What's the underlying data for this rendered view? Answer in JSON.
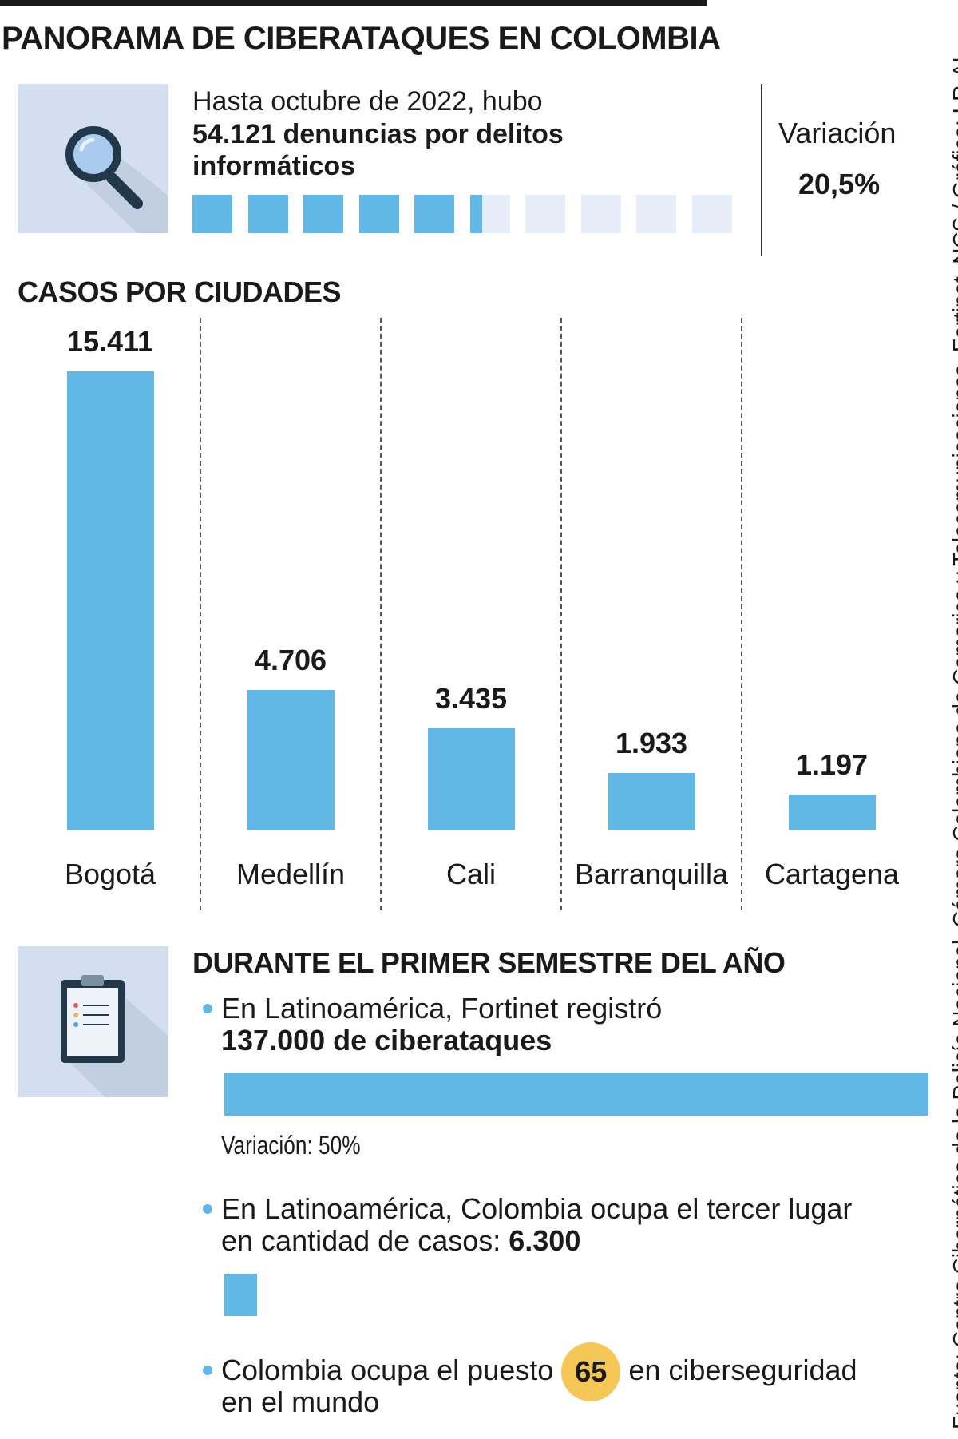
{
  "title": "PANORAMA DE CIBERATAQUES EN COLOMBIA",
  "intro": {
    "line1": "Hasta octubre de 2022, hubo",
    "line2_bold": "54.121 denuncias por delitos informáticos",
    "icon": "magnifier-icon",
    "progress_squares_filled": 5.3,
    "progress_squares_total": 10,
    "variation_label": "Variación",
    "variation_value": "20,5%"
  },
  "cities": {
    "title": "CASOS POR CIUDADES"
  },
  "chart_data": {
    "type": "bar",
    "title": "CASOS POR CIUDADES",
    "categories": [
      "Bogotá",
      "Medellín",
      "Cali",
      "Barranquilla",
      "Cartagena"
    ],
    "values": [
      15411,
      4706,
      3435,
      1933,
      1197
    ],
    "value_labels": [
      "15.411",
      "4.706",
      "3.435",
      "1.933",
      "1.197"
    ],
    "xlabel": "",
    "ylabel": "",
    "grid": false
  },
  "semester": {
    "title": "DURANTE EL PRIMER SEMESTRE DEL AÑO",
    "icon": "clipboard-icon",
    "item1_line1": "En Latinoamérica, Fortinet registró",
    "item1_line2_bold": "137.000 de ciberataques",
    "item1_variation": "Variación: 50%",
    "item1_value": 137000,
    "item2_line1": "En Latinoamérica, Colombia ocupa el tercer lugar",
    "item2_line2": "en cantidad de casos: ",
    "item2_line2_bold": "6.300",
    "item2_value": 6300,
    "item3_pre": "Colombia ocupa el puesto",
    "item3_rank": "65",
    "item3_post": "en ciberseguridad",
    "item3_line2": "en el mundo"
  },
  "source": "Fuente: Centro Cibernético de la Policía Nacional, Cámara Colombiana de Comerico y Telecomunicaciones, Fortinet, NCS / Gráfico: LR-AL",
  "colors": {
    "accent": "#61b8e6",
    "icon_bg": "#d3dff0",
    "square_empty": "#e6edf8",
    "badge": "#f4c757",
    "text": "#1a1a1a"
  }
}
